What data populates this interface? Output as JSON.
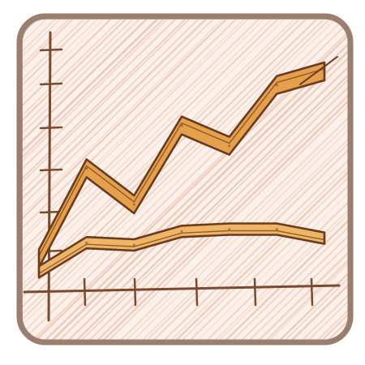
{
  "icon": {
    "name": "line-chart-icon",
    "description_visible_text": ""
  },
  "palette": {
    "frame_stroke": "#9a7f70",
    "paper": "#fbf1ea",
    "hatch": "#e9b8a3",
    "axis": "#7a4a2e",
    "line_fill_upper": "#e4a04a",
    "line_fill_lower": "#eeb565",
    "line_outline": "#6b3a1f"
  },
  "chart_data": {
    "type": "line",
    "title": "",
    "xlabel": "",
    "ylabel": "",
    "series": [
      {
        "values": [
          1.2,
          5.2,
          3.6,
          7.1,
          6.2,
          8.9,
          9.5
        ]
      },
      {
        "values": [
          0.6,
          1.9,
          1.8,
          2.4,
          2.5,
          2.5,
          2.1
        ]
      }
    ]
  }
}
